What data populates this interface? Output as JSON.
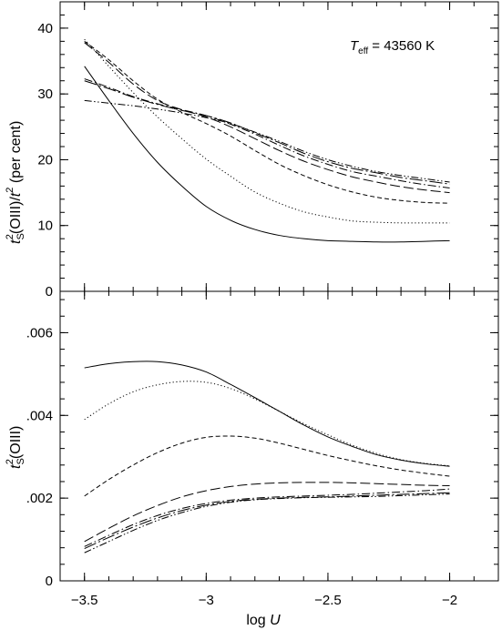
{
  "figure": {
    "x_axis": {
      "label_prefix": "log ",
      "label_var": "U",
      "range": [
        -3.6,
        -1.8
      ],
      "major_ticks": [
        -3.5,
        -3,
        -2.5,
        -2
      ],
      "tick_labels": [
        "−3.5",
        "−3",
        "−2.5",
        "−2"
      ]
    }
  },
  "chart_data": [
    {
      "type": "line",
      "panel": "top",
      "ylabel_parts": {
        "t": "t",
        "s": "S",
        "sup": "2",
        "oiii": "(OIII)/",
        "t2": "t",
        "sup2": "2",
        "pc": " (per cent)"
      },
      "annotation": {
        "T": "T",
        "sub": "eff",
        "value": " = 43560 K"
      },
      "ylim": [
        0,
        44
      ],
      "y_major_ticks": [
        0,
        10,
        20,
        30,
        40
      ],
      "y_tick_labels": [
        "0",
        "10",
        "20",
        "30",
        "40"
      ],
      "grid": false,
      "series": [
        {
          "style": "solid",
          "x": [
            -3.5,
            -3.4,
            -3.3,
            -3.2,
            -3.1,
            -3.0,
            -2.9,
            -2.8,
            -2.7,
            -2.6,
            -2.5,
            -2.4,
            -2.3,
            -2.2,
            -2.1,
            -2.0
          ],
          "y": [
            34.2,
            29.0,
            24.0,
            19.6,
            16.0,
            12.9,
            10.8,
            9.4,
            8.5,
            8.0,
            7.7,
            7.6,
            7.5,
            7.5,
            7.6,
            7.7
          ]
        },
        {
          "style": "dotted",
          "x": [
            -3.5,
            -3.4,
            -3.3,
            -3.2,
            -3.1,
            -3.0,
            -2.9,
            -2.8,
            -2.7,
            -2.6,
            -2.5,
            -2.4,
            -2.3,
            -2.2,
            -2.1,
            -2.0
          ],
          "y": [
            38.3,
            34.2,
            30.2,
            26.5,
            23.2,
            20.1,
            17.5,
            15.1,
            13.4,
            12.1,
            11.3,
            10.7,
            10.5,
            10.4,
            10.4,
            10.4
          ]
        },
        {
          "style": "short-dash",
          "x": [
            -3.5,
            -3.4,
            -3.3,
            -3.2,
            -3.1,
            -3.0,
            -2.9,
            -2.8,
            -2.7,
            -2.6,
            -2.5,
            -2.4,
            -2.3,
            -2.2,
            -2.1,
            -2.0
          ],
          "y": [
            38.0,
            35.2,
            32.0,
            29.2,
            27.2,
            25.5,
            23.6,
            21.4,
            19.3,
            17.6,
            16.2,
            15.1,
            14.3,
            13.8,
            13.5,
            13.4
          ]
        },
        {
          "style": "long-dash",
          "x": [
            -3.5,
            -3.4,
            -3.3,
            -3.2,
            -3.1,
            -3.0,
            -2.9,
            -2.8,
            -2.7,
            -2.6,
            -2.5,
            -2.4,
            -2.3,
            -2.2,
            -2.1,
            -2.0
          ],
          "y": [
            37.8,
            34.8,
            31.5,
            29.0,
            27.6,
            26.5,
            25.0,
            23.2,
            21.4,
            19.8,
            18.5,
            17.4,
            16.6,
            15.9,
            15.4,
            15.0
          ]
        },
        {
          "style": "dash-dot",
          "x": [
            -3.5,
            -3.4,
            -3.3,
            -3.2,
            -3.1,
            -3.0,
            -2.9,
            -2.8,
            -2.7,
            -2.6,
            -2.5,
            -2.4,
            -2.3,
            -2.2,
            -2.1,
            -2.0
          ],
          "y": [
            32.3,
            31.0,
            29.6,
            28.5,
            27.6,
            26.7,
            25.4,
            23.9,
            22.2,
            20.6,
            19.3,
            18.2,
            17.5,
            16.8,
            16.2,
            15.7
          ]
        },
        {
          "style": "long-dash-dot",
          "x": [
            -3.5,
            -3.4,
            -3.3,
            -3.2,
            -3.1,
            -3.0,
            -2.9,
            -2.8,
            -2.7,
            -2.6,
            -2.5,
            -2.4,
            -2.3,
            -2.2,
            -2.1,
            -2.0
          ],
          "y": [
            32.0,
            30.8,
            29.5,
            28.4,
            27.5,
            26.7,
            25.6,
            24.1,
            22.6,
            21.0,
            19.7,
            18.7,
            18.0,
            17.3,
            16.8,
            16.3
          ]
        },
        {
          "style": "dash-dot-dot",
          "x": [
            -3.5,
            -3.4,
            -3.3,
            -3.2,
            -3.1,
            -3.0,
            -2.9,
            -2.8,
            -2.7,
            -2.6,
            -2.5,
            -2.4,
            -2.3,
            -2.2,
            -2.1,
            -2.0
          ],
          "y": [
            29.0,
            28.6,
            28.2,
            27.7,
            27.1,
            26.4,
            25.5,
            24.2,
            22.8,
            21.3,
            20.0,
            19.0,
            18.2,
            17.6,
            17.1,
            16.6
          ]
        }
      ]
    },
    {
      "type": "line",
      "panel": "bottom",
      "ylabel_parts": {
        "t": "t",
        "s": "S",
        "sup": "2",
        "oiii": "(OIII)"
      },
      "ylim": [
        0,
        0.007
      ],
      "y_major_ticks": [
        0,
        0.002,
        0.004,
        0.006
      ],
      "y_tick_labels": [
        "0",
        ".002",
        ".004",
        ".006"
      ],
      "grid": false,
      "series": [
        {
          "style": "solid",
          "x": [
            -3.5,
            -3.4,
            -3.3,
            -3.2,
            -3.1,
            -3.0,
            -2.9,
            -2.8,
            -2.7,
            -2.6,
            -2.5,
            -2.4,
            -2.3,
            -2.2,
            -2.1,
            -2.0
          ],
          "y": [
            0.00515,
            0.00525,
            0.0053,
            0.0053,
            0.00522,
            0.00505,
            0.00475,
            0.00443,
            0.0041,
            0.00377,
            0.00348,
            0.00325,
            0.00305,
            0.00292,
            0.00283,
            0.00277
          ]
        },
        {
          "style": "dotted",
          "x": [
            -3.5,
            -3.4,
            -3.3,
            -3.2,
            -3.1,
            -3.0,
            -2.9,
            -2.8,
            -2.7,
            -2.6,
            -2.5,
            -2.4,
            -2.3,
            -2.2,
            -2.1,
            -2.0
          ],
          "y": [
            0.0039,
            0.00428,
            0.00457,
            0.00474,
            0.00482,
            0.0048,
            0.00465,
            0.0044,
            0.0041,
            0.0038,
            0.00353,
            0.00328,
            0.00308,
            0.00293,
            0.00284,
            0.00278
          ]
        },
        {
          "style": "short-dash",
          "x": [
            -3.5,
            -3.4,
            -3.3,
            -3.2,
            -3.1,
            -3.0,
            -2.9,
            -2.8,
            -2.7,
            -2.6,
            -2.5,
            -2.4,
            -2.3,
            -2.2,
            -2.1,
            -2.0
          ],
          "y": [
            0.00205,
            0.00245,
            0.0028,
            0.0031,
            0.00333,
            0.00347,
            0.0035,
            0.00345,
            0.00333,
            0.00318,
            0.00303,
            0.0029,
            0.00278,
            0.00268,
            0.0026,
            0.00253
          ]
        },
        {
          "style": "long-dash",
          "x": [
            -3.5,
            -3.4,
            -3.3,
            -3.2,
            -3.1,
            -3.0,
            -2.9,
            -2.8,
            -2.7,
            -2.6,
            -2.5,
            -2.4,
            -2.3,
            -2.2,
            -2.1,
            -2.0
          ],
          "y": [
            0.00095,
            0.00127,
            0.00157,
            0.00182,
            0.00203,
            0.00218,
            0.00228,
            0.00234,
            0.00237,
            0.00238,
            0.00238,
            0.00237,
            0.00235,
            0.00233,
            0.00231,
            0.0023
          ]
        },
        {
          "style": "dash-dot",
          "x": [
            -3.5,
            -3.4,
            -3.3,
            -3.2,
            -3.1,
            -3.0,
            -2.9,
            -2.8,
            -2.7,
            -2.6,
            -2.5,
            -2.4,
            -2.3,
            -2.2,
            -2.1,
            -2.0
          ],
          "y": [
            0.00083,
            0.0011,
            0.00136,
            0.00158,
            0.00175,
            0.00187,
            0.00195,
            0.002,
            0.00203,
            0.00205,
            0.00207,
            0.00209,
            0.00212,
            0.00215,
            0.00218,
            0.00222
          ]
        },
        {
          "style": "long-dash-dot",
          "x": [
            -3.5,
            -3.4,
            -3.3,
            -3.2,
            -3.1,
            -3.0,
            -2.9,
            -2.8,
            -2.7,
            -2.6,
            -2.5,
            -2.4,
            -2.3,
            -2.2,
            -2.1,
            -2.0
          ],
          "y": [
            0.00078,
            0.00105,
            0.0013,
            0.00152,
            0.0017,
            0.00183,
            0.00192,
            0.00197,
            0.002,
            0.00202,
            0.00203,
            0.00205,
            0.00207,
            0.00209,
            0.00211,
            0.00213
          ]
        },
        {
          "style": "dash-dot-dot",
          "x": [
            -3.5,
            -3.4,
            -3.3,
            -3.2,
            -3.1,
            -3.0,
            -2.9,
            -2.8,
            -2.7,
            -2.6,
            -2.5,
            -2.4,
            -2.3,
            -2.2,
            -2.1,
            -2.0
          ],
          "y": [
            0.00068,
            0.00095,
            0.00122,
            0.00146,
            0.00165,
            0.0018,
            0.0019,
            0.00196,
            0.00199,
            0.00201,
            0.00202,
            0.00203,
            0.00204,
            0.00206,
            0.00208,
            0.0021
          ]
        }
      ]
    }
  ]
}
